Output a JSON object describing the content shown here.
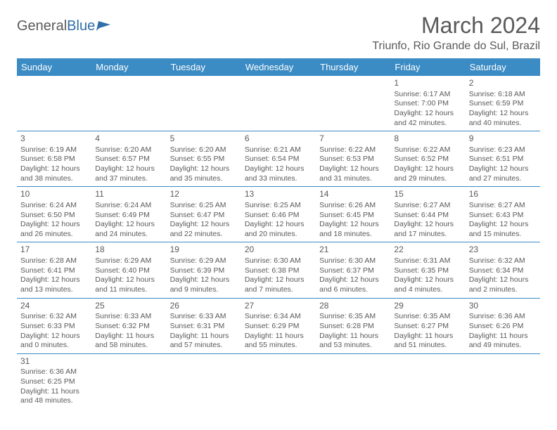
{
  "logo": {
    "text1": "General",
    "text2": "Blue"
  },
  "title": "March 2024",
  "location": "Triunfo, Rio Grande do Sul, Brazil",
  "colors": {
    "header_bg": "#3b8bc4",
    "text": "#5a5a5a",
    "line": "#3b8bc4",
    "logo_blue": "#2f6fa7"
  },
  "day_names": [
    "Sunday",
    "Monday",
    "Tuesday",
    "Wednesday",
    "Thursday",
    "Friday",
    "Saturday"
  ],
  "weeks": [
    [
      {
        "num": "",
        "sr": "",
        "ss": "",
        "dl": ""
      },
      {
        "num": "",
        "sr": "",
        "ss": "",
        "dl": ""
      },
      {
        "num": "",
        "sr": "",
        "ss": "",
        "dl": ""
      },
      {
        "num": "",
        "sr": "",
        "ss": "",
        "dl": ""
      },
      {
        "num": "",
        "sr": "",
        "ss": "",
        "dl": ""
      },
      {
        "num": "1",
        "sr": "Sunrise: 6:17 AM",
        "ss": "Sunset: 7:00 PM",
        "dl": "Daylight: 12 hours and 42 minutes."
      },
      {
        "num": "2",
        "sr": "Sunrise: 6:18 AM",
        "ss": "Sunset: 6:59 PM",
        "dl": "Daylight: 12 hours and 40 minutes."
      }
    ],
    [
      {
        "num": "3",
        "sr": "Sunrise: 6:19 AM",
        "ss": "Sunset: 6:58 PM",
        "dl": "Daylight: 12 hours and 38 minutes."
      },
      {
        "num": "4",
        "sr": "Sunrise: 6:20 AM",
        "ss": "Sunset: 6:57 PM",
        "dl": "Daylight: 12 hours and 37 minutes."
      },
      {
        "num": "5",
        "sr": "Sunrise: 6:20 AM",
        "ss": "Sunset: 6:55 PM",
        "dl": "Daylight: 12 hours and 35 minutes."
      },
      {
        "num": "6",
        "sr": "Sunrise: 6:21 AM",
        "ss": "Sunset: 6:54 PM",
        "dl": "Daylight: 12 hours and 33 minutes."
      },
      {
        "num": "7",
        "sr": "Sunrise: 6:22 AM",
        "ss": "Sunset: 6:53 PM",
        "dl": "Daylight: 12 hours and 31 minutes."
      },
      {
        "num": "8",
        "sr": "Sunrise: 6:22 AM",
        "ss": "Sunset: 6:52 PM",
        "dl": "Daylight: 12 hours and 29 minutes."
      },
      {
        "num": "9",
        "sr": "Sunrise: 6:23 AM",
        "ss": "Sunset: 6:51 PM",
        "dl": "Daylight: 12 hours and 27 minutes."
      }
    ],
    [
      {
        "num": "10",
        "sr": "Sunrise: 6:24 AM",
        "ss": "Sunset: 6:50 PM",
        "dl": "Daylight: 12 hours and 26 minutes."
      },
      {
        "num": "11",
        "sr": "Sunrise: 6:24 AM",
        "ss": "Sunset: 6:49 PM",
        "dl": "Daylight: 12 hours and 24 minutes."
      },
      {
        "num": "12",
        "sr": "Sunrise: 6:25 AM",
        "ss": "Sunset: 6:47 PM",
        "dl": "Daylight: 12 hours and 22 minutes."
      },
      {
        "num": "13",
        "sr": "Sunrise: 6:25 AM",
        "ss": "Sunset: 6:46 PM",
        "dl": "Daylight: 12 hours and 20 minutes."
      },
      {
        "num": "14",
        "sr": "Sunrise: 6:26 AM",
        "ss": "Sunset: 6:45 PM",
        "dl": "Daylight: 12 hours and 18 minutes."
      },
      {
        "num": "15",
        "sr": "Sunrise: 6:27 AM",
        "ss": "Sunset: 6:44 PM",
        "dl": "Daylight: 12 hours and 17 minutes."
      },
      {
        "num": "16",
        "sr": "Sunrise: 6:27 AM",
        "ss": "Sunset: 6:43 PM",
        "dl": "Daylight: 12 hours and 15 minutes."
      }
    ],
    [
      {
        "num": "17",
        "sr": "Sunrise: 6:28 AM",
        "ss": "Sunset: 6:41 PM",
        "dl": "Daylight: 12 hours and 13 minutes."
      },
      {
        "num": "18",
        "sr": "Sunrise: 6:29 AM",
        "ss": "Sunset: 6:40 PM",
        "dl": "Daylight: 12 hours and 11 minutes."
      },
      {
        "num": "19",
        "sr": "Sunrise: 6:29 AM",
        "ss": "Sunset: 6:39 PM",
        "dl": "Daylight: 12 hours and 9 minutes."
      },
      {
        "num": "20",
        "sr": "Sunrise: 6:30 AM",
        "ss": "Sunset: 6:38 PM",
        "dl": "Daylight: 12 hours and 7 minutes."
      },
      {
        "num": "21",
        "sr": "Sunrise: 6:30 AM",
        "ss": "Sunset: 6:37 PM",
        "dl": "Daylight: 12 hours and 6 minutes."
      },
      {
        "num": "22",
        "sr": "Sunrise: 6:31 AM",
        "ss": "Sunset: 6:35 PM",
        "dl": "Daylight: 12 hours and 4 minutes."
      },
      {
        "num": "23",
        "sr": "Sunrise: 6:32 AM",
        "ss": "Sunset: 6:34 PM",
        "dl": "Daylight: 12 hours and 2 minutes."
      }
    ],
    [
      {
        "num": "24",
        "sr": "Sunrise: 6:32 AM",
        "ss": "Sunset: 6:33 PM",
        "dl": "Daylight: 12 hours and 0 minutes."
      },
      {
        "num": "25",
        "sr": "Sunrise: 6:33 AM",
        "ss": "Sunset: 6:32 PM",
        "dl": "Daylight: 11 hours and 58 minutes."
      },
      {
        "num": "26",
        "sr": "Sunrise: 6:33 AM",
        "ss": "Sunset: 6:31 PM",
        "dl": "Daylight: 11 hours and 57 minutes."
      },
      {
        "num": "27",
        "sr": "Sunrise: 6:34 AM",
        "ss": "Sunset: 6:29 PM",
        "dl": "Daylight: 11 hours and 55 minutes."
      },
      {
        "num": "28",
        "sr": "Sunrise: 6:35 AM",
        "ss": "Sunset: 6:28 PM",
        "dl": "Daylight: 11 hours and 53 minutes."
      },
      {
        "num": "29",
        "sr": "Sunrise: 6:35 AM",
        "ss": "Sunset: 6:27 PM",
        "dl": "Daylight: 11 hours and 51 minutes."
      },
      {
        "num": "30",
        "sr": "Sunrise: 6:36 AM",
        "ss": "Sunset: 6:26 PM",
        "dl": "Daylight: 11 hours and 49 minutes."
      }
    ],
    [
      {
        "num": "31",
        "sr": "Sunrise: 6:36 AM",
        "ss": "Sunset: 6:25 PM",
        "dl": "Daylight: 11 hours and 48 minutes."
      },
      {
        "num": "",
        "sr": "",
        "ss": "",
        "dl": ""
      },
      {
        "num": "",
        "sr": "",
        "ss": "",
        "dl": ""
      },
      {
        "num": "",
        "sr": "",
        "ss": "",
        "dl": ""
      },
      {
        "num": "",
        "sr": "",
        "ss": "",
        "dl": ""
      },
      {
        "num": "",
        "sr": "",
        "ss": "",
        "dl": ""
      },
      {
        "num": "",
        "sr": "",
        "ss": "",
        "dl": ""
      }
    ]
  ]
}
